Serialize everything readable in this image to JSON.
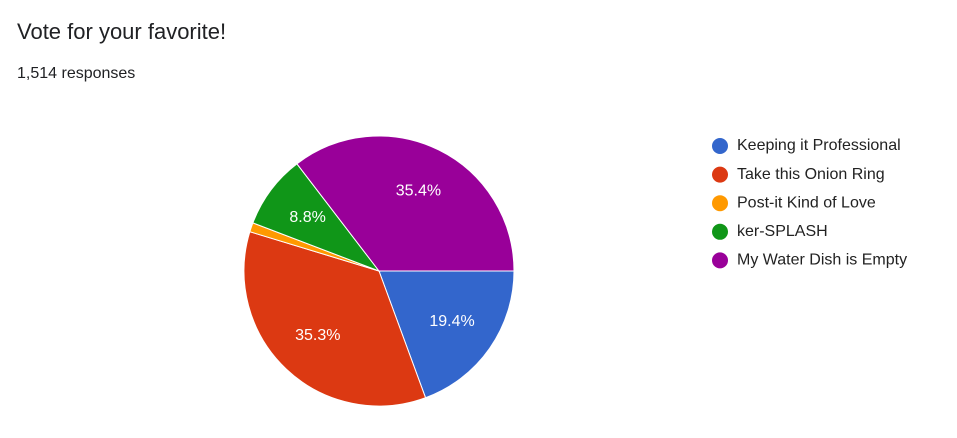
{
  "chart_data": {
    "type": "pie",
    "title": "Vote for your favorite!",
    "subtitle": "1,514 responses",
    "categories": [
      "Keeping it Professional",
      "Take this Onion Ring",
      "Post-it Kind of Love",
      "ker-SPLASH",
      "My Water Dish is Empty"
    ],
    "values": [
      19.4,
      35.3,
      1.1,
      8.8,
      35.4
    ],
    "value_labels": [
      "19.4%",
      "35.3%",
      null,
      "8.8%",
      "35.4%"
    ],
    "colors": [
      "#3366cc",
      "#dc3912",
      "#ff9900",
      "#109618",
      "#990099"
    ],
    "legend": "right"
  }
}
